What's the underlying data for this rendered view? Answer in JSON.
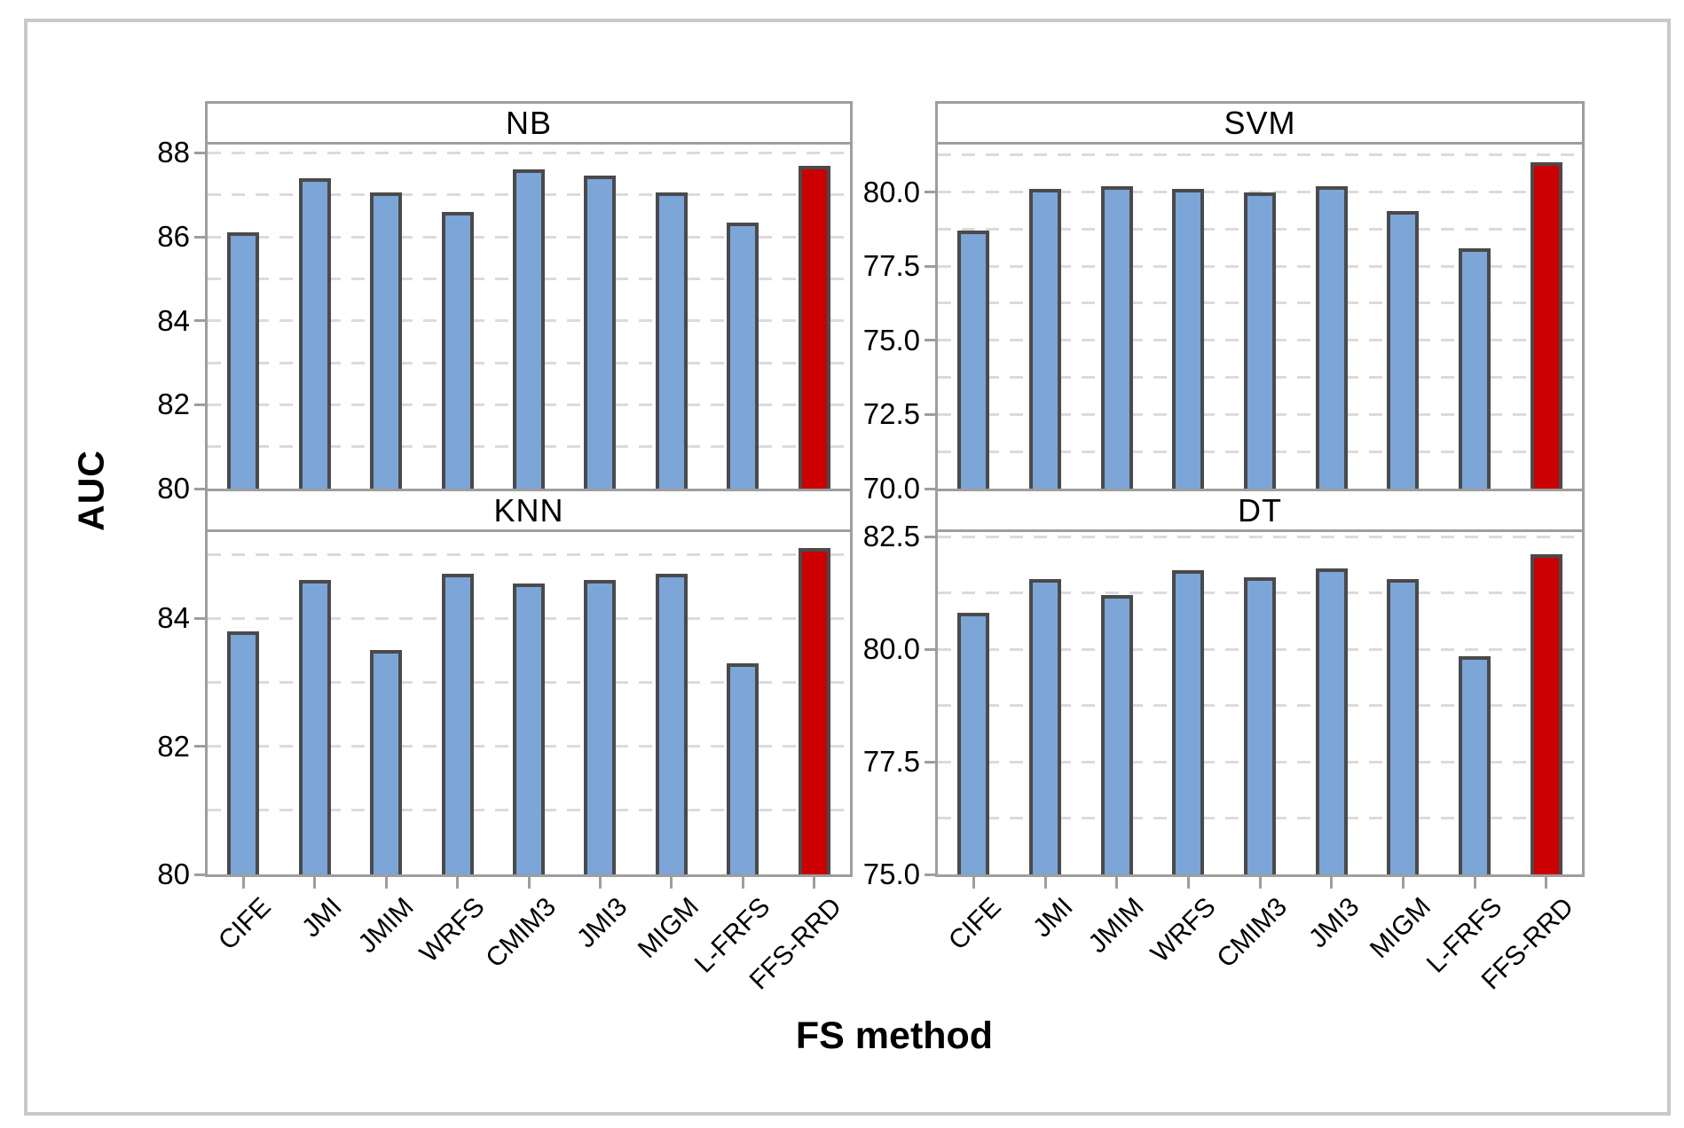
{
  "figure": {
    "y_axis_title": "AUC",
    "x_axis_title": "FS method",
    "categories": [
      "CIFE",
      "JMI",
      "JMIM",
      "WRFS",
      "CMIM3",
      "JMI3",
      "MIGM",
      "L-FRFS",
      "FFS-RRD"
    ],
    "highlight_category": "FFS-RRD",
    "colors": {
      "bar_fill": "#7CA5D8",
      "bar_border": "#4A4A4A",
      "highlight_fill": "#CC0000",
      "gridline": "#DBDBDB",
      "axis": "#9E9E9E",
      "frame": "#C9C9C9",
      "text": "#000000"
    }
  },
  "chart_data": [
    {
      "type": "bar",
      "title": "NB",
      "grid_pos": [
        0,
        0
      ],
      "ylabel": "AUC",
      "ylim": [
        80,
        88.2
      ],
      "grid_step": 1,
      "yticks": [
        {
          "v": 80,
          "label": "80"
        },
        {
          "v": 82,
          "label": "82"
        },
        {
          "v": 84,
          "label": "84"
        },
        {
          "v": 86,
          "label": "86"
        },
        {
          "v": 88,
          "label": "88"
        }
      ],
      "categories": [
        "CIFE",
        "JMI",
        "JMIM",
        "WRFS",
        "CMIM3",
        "JMI3",
        "MIGM",
        "L-FRFS",
        "FFS-RRD"
      ],
      "values": [
        86.1,
        87.4,
        87.05,
        86.6,
        87.6,
        87.45,
        87.05,
        86.35,
        87.7
      ]
    },
    {
      "type": "bar",
      "title": "SVM",
      "grid_pos": [
        0,
        1
      ],
      "ylabel": "AUC",
      "ylim": [
        70,
        81.6
      ],
      "grid_step": 1.25,
      "yticks": [
        {
          "v": 70,
          "label": "70.0"
        },
        {
          "v": 72.5,
          "label": "72.5"
        },
        {
          "v": 75,
          "label": "75.0"
        },
        {
          "v": 77.5,
          "label": "77.5"
        },
        {
          "v": 80,
          "label": "80.0"
        }
      ],
      "categories": [
        "CIFE",
        "JMI",
        "JMIM",
        "WRFS",
        "CMIM3",
        "JMI3",
        "MIGM",
        "L-FRFS",
        "FFS-RRD"
      ],
      "values": [
        78.7,
        80.1,
        80.2,
        80.1,
        80.0,
        80.2,
        79.35,
        78.1,
        81.0
      ]
    },
    {
      "type": "bar",
      "title": "KNN",
      "grid_pos": [
        1,
        0
      ],
      "ylabel": "AUC",
      "ylim": [
        80,
        85.35
      ],
      "grid_step": 1,
      "yticks": [
        {
          "v": 80,
          "label": "80"
        },
        {
          "v": 82,
          "label": "82"
        },
        {
          "v": 84,
          "label": "84"
        }
      ],
      "categories": [
        "CIFE",
        "JMI",
        "JMIM",
        "WRFS",
        "CMIM3",
        "JMI3",
        "MIGM",
        "L-FRFS",
        "FFS-RRD"
      ],
      "values": [
        83.8,
        84.6,
        83.5,
        84.7,
        84.55,
        84.6,
        84.7,
        83.3,
        85.1
      ]
    },
    {
      "type": "bar",
      "title": "DT",
      "grid_pos": [
        1,
        1
      ],
      "ylabel": "AUC",
      "ylim": [
        75,
        82.6
      ],
      "grid_step": 1.25,
      "yticks": [
        {
          "v": 75,
          "label": "75.0"
        },
        {
          "v": 77.5,
          "label": "77.5"
        },
        {
          "v": 80,
          "label": "80.0"
        },
        {
          "v": 82.5,
          "label": "82.5"
        }
      ],
      "categories": [
        "CIFE",
        "JMI",
        "JMIM",
        "WRFS",
        "CMIM3",
        "JMI3",
        "MIGM",
        "L-FRFS",
        "FFS-RRD"
      ],
      "values": [
        80.8,
        81.55,
        81.2,
        81.75,
        81.6,
        81.8,
        81.55,
        79.85,
        82.1
      ]
    }
  ]
}
